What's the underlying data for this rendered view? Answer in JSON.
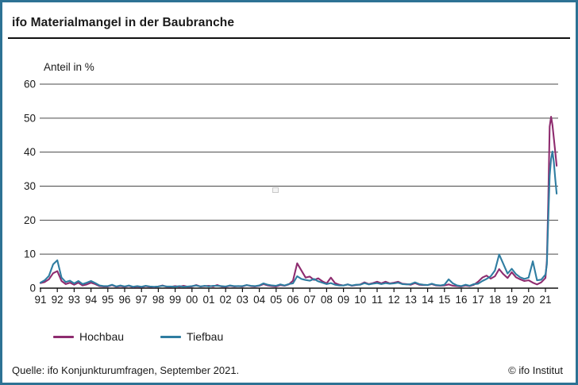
{
  "title": "ifo Materialmangel in der Baubranche",
  "axis_unit_label": "Anteil in %",
  "legend": [
    {
      "label": "Hochbau",
      "color": "#8e2c6f"
    },
    {
      "label": "Tiefbau",
      "color": "#2f7da1"
    }
  ],
  "footer": {
    "source": "Quelle: ifo Konjunkturumfragen, September 2021.",
    "copyright": "© ifo Institut"
  },
  "colors": {
    "border": "#2d7294",
    "hochbau": "#8e2c6f",
    "tiefbau": "#2f7da1",
    "gridline": "#4a4a4a",
    "axis": "#111111",
    "text": "#1a1a1a"
  },
  "chart_data": {
    "type": "line",
    "title": "ifo Materialmangel in der Baubranche",
    "xlabel": "",
    "ylabel": "Anteil in %",
    "ylim": [
      0,
      60
    ],
    "yticks": [
      0,
      10,
      20,
      30,
      40,
      50,
      60
    ],
    "xlim": [
      1991,
      2021.95
    ],
    "grid": true,
    "legend_position": "bottom-left",
    "xtick_labels": [
      "91",
      "92",
      "93",
      "94",
      "95",
      "96",
      "97",
      "98",
      "99",
      "00",
      "01",
      "02",
      "03",
      "04",
      "05",
      "06",
      "07",
      "08",
      "09",
      "10",
      "11",
      "12",
      "13",
      "14",
      "15",
      "16",
      "17",
      "18",
      "19",
      "20",
      "21"
    ],
    "x": [
      1991,
      1991.25,
      1991.5,
      1991.75,
      1992,
      1992.25,
      1992.5,
      1992.75,
      1993,
      1993.25,
      1993.5,
      1993.75,
      1994,
      1994.25,
      1994.5,
      1994.75,
      1995,
      1995.25,
      1995.5,
      1995.75,
      1996,
      1996.25,
      1996.5,
      1996.75,
      1997,
      1997.25,
      1997.5,
      1997.75,
      1998,
      1998.25,
      1998.5,
      1998.75,
      1999,
      1999.25,
      1999.5,
      1999.75,
      2000,
      2000.25,
      2000.5,
      2000.75,
      2001,
      2001.25,
      2001.5,
      2001.75,
      2002,
      2002.25,
      2002.5,
      2002.75,
      2003,
      2003.25,
      2003.5,
      2003.75,
      2004,
      2004.25,
      2004.5,
      2004.75,
      2005,
      2005.25,
      2005.5,
      2005.75,
      2006,
      2006.25,
      2006.5,
      2006.75,
      2007,
      2007.25,
      2007.5,
      2007.75,
      2008,
      2008.25,
      2008.5,
      2008.75,
      2009,
      2009.25,
      2009.5,
      2009.75,
      2010,
      2010.25,
      2010.5,
      2010.75,
      2011,
      2011.25,
      2011.5,
      2011.75,
      2012,
      2012.25,
      2012.5,
      2012.75,
      2013,
      2013.25,
      2013.5,
      2013.75,
      2014,
      2014.25,
      2014.5,
      2014.75,
      2015,
      2015.25,
      2015.5,
      2015.75,
      2016,
      2016.25,
      2016.5,
      2016.75,
      2017,
      2017.25,
      2017.5,
      2017.75,
      2018,
      2018.25,
      2018.5,
      2018.75,
      2019,
      2019.25,
      2019.5,
      2019.75,
      2020,
      2020.25,
      2020.5,
      2020.75,
      2021,
      2021.083,
      2021.167,
      2021.25,
      2021.333,
      2021.417,
      2021.5,
      2021.583,
      2021.667
    ],
    "series": [
      {
        "name": "Hochbau",
        "color": "#8e2c6f",
        "values": [
          1.5,
          1.8,
          2.6,
          4.4,
          5.0,
          2.1,
          1.2,
          1.6,
          1.0,
          1.6,
          0.8,
          1.1,
          1.6,
          1.2,
          0.6,
          0.5,
          0.5,
          0.9,
          0.4,
          0.6,
          0.4,
          0.7,
          0.3,
          0.5,
          0.3,
          0.6,
          0.4,
          0.3,
          0.5,
          0.8,
          0.4,
          0.4,
          0.6,
          0.4,
          0.7,
          0.4,
          0.5,
          0.9,
          0.5,
          0.6,
          0.7,
          0.5,
          0.9,
          0.5,
          0.4,
          0.7,
          0.5,
          0.6,
          0.5,
          0.9,
          0.6,
          0.5,
          0.7,
          1.2,
          0.8,
          0.6,
          0.5,
          0.9,
          0.7,
          1.1,
          2.2,
          7.3,
          5.2,
          3.1,
          3.4,
          2.4,
          2.9,
          2.0,
          1.4,
          3.1,
          1.5,
          1.0,
          0.8,
          1.1,
          0.7,
          0.9,
          1.1,
          1.7,
          1.2,
          1.5,
          1.9,
          1.4,
          1.9,
          1.4,
          1.6,
          1.9,
          1.3,
          1.2,
          1.0,
          1.5,
          1.0,
          0.9,
          0.9,
          1.2,
          0.8,
          0.7,
          0.8,
          1.1,
          0.7,
          0.6,
          0.5,
          0.8,
          0.6,
          1.0,
          1.9,
          3.1,
          3.7,
          2.8,
          3.5,
          5.6,
          4.1,
          3.0,
          4.7,
          3.2,
          2.6,
          2.1,
          2.3,
          1.6,
          1.1,
          1.7,
          3.0,
          8.0,
          25.0,
          47.5,
          50.4,
          48.0,
          44.0,
          40.0,
          36.0
        ]
      },
      {
        "name": "Tiefbau",
        "color": "#2f7da1",
        "values": [
          1.6,
          2.3,
          3.6,
          7.0,
          8.2,
          3.1,
          1.8,
          2.2,
          1.4,
          2.1,
          1.2,
          1.6,
          2.1,
          1.5,
          0.8,
          0.6,
          0.6,
          1.0,
          0.5,
          0.8,
          0.5,
          0.8,
          0.4,
          0.6,
          0.4,
          0.7,
          0.5,
          0.4,
          0.5,
          0.7,
          0.5,
          0.5,
          0.4,
          0.6,
          0.4,
          0.5,
          0.6,
          0.8,
          0.5,
          0.7,
          0.5,
          0.7,
          0.7,
          0.6,
          0.5,
          0.8,
          0.6,
          0.6,
          0.6,
          0.9,
          0.7,
          0.6,
          0.8,
          1.4,
          1.0,
          0.8,
          0.7,
          1.1,
          0.8,
          1.2,
          1.4,
          3.5,
          2.7,
          2.4,
          2.2,
          2.7,
          2.0,
          1.6,
          1.2,
          1.5,
          1.0,
          0.8,
          0.8,
          1.1,
          0.8,
          1.0,
          1.0,
          1.5,
          1.1,
          1.3,
          1.5,
          1.2,
          1.5,
          1.3,
          1.4,
          1.6,
          1.2,
          1.1,
          1.2,
          1.7,
          1.2,
          1.0,
          0.9,
          1.3,
          0.9,
          0.8,
          1.0,
          2.6,
          1.4,
          0.8,
          0.6,
          1.0,
          0.7,
          1.2,
          1.3,
          2.1,
          2.7,
          3.5,
          5.2,
          9.9,
          7.1,
          4.3,
          5.7,
          4.1,
          3.2,
          2.7,
          3.1,
          7.9,
          2.3,
          2.5,
          4.0,
          7.0,
          20.0,
          33.0,
          38.0,
          40.2,
          37.0,
          32.0,
          27.8
        ]
      }
    ]
  }
}
